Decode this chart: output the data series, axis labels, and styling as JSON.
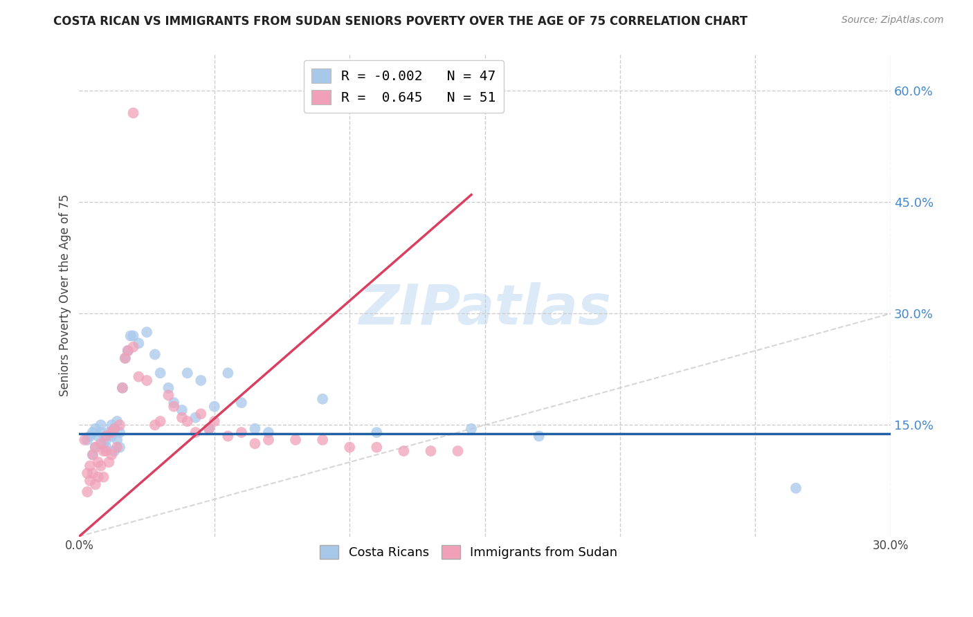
{
  "title": "COSTA RICAN VS IMMIGRANTS FROM SUDAN SENIORS POVERTY OVER THE AGE OF 75 CORRELATION CHART",
  "source": "Source: ZipAtlas.com",
  "ylabel": "Seniors Poverty Over the Age of 75",
  "xlim": [
    0.0,
    0.3
  ],
  "ylim": [
    0.0,
    0.65
  ],
  "xticks": [
    0.0,
    0.05,
    0.1,
    0.15,
    0.2,
    0.25,
    0.3
  ],
  "xticklabels": [
    "0.0%",
    "",
    "",
    "",
    "",
    "",
    "30.0%"
  ],
  "right_yticks": [
    0.15,
    0.3,
    0.45,
    0.6
  ],
  "right_yticklabels": [
    "15.0%",
    "30.0%",
    "45.0%",
    "60.0%"
  ],
  "grid_yticks": [
    0.15,
    0.3,
    0.45,
    0.6
  ],
  "grid_xticks": [
    0.05,
    0.1,
    0.15,
    0.2,
    0.25,
    0.3
  ],
  "blue_color": "#a8c8ea",
  "pink_color": "#f0a0b8",
  "blue_line_color": "#1f5fa6",
  "pink_line_color": "#d94060",
  "diag_line_color": "#cccccc",
  "legend_r_blue": "-0.002",
  "legend_n_blue": "47",
  "legend_r_pink": "0.645",
  "legend_n_pink": "51",
  "legend_label_blue": "Costa Ricans",
  "legend_label_pink": "Immigrants from Sudan",
  "watermark": "ZIPatlas",
  "blue_line_x": [
    0.0,
    0.3
  ],
  "blue_line_y": [
    0.138,
    0.138
  ],
  "pink_line_x": [
    0.0,
    0.145
  ],
  "pink_line_y": [
    0.0,
    0.46
  ],
  "diag_line_x": [
    0.0,
    0.3
  ],
  "diag_line_y": [
    0.0,
    0.3
  ],
  "blue_scatter_x": [
    0.003,
    0.004,
    0.005,
    0.005,
    0.006,
    0.006,
    0.007,
    0.008,
    0.008,
    0.009,
    0.01,
    0.01,
    0.011,
    0.012,
    0.012,
    0.013,
    0.013,
    0.014,
    0.014,
    0.015,
    0.015,
    0.016,
    0.017,
    0.018,
    0.019,
    0.02,
    0.022,
    0.025,
    0.028,
    0.03,
    0.033,
    0.035,
    0.038,
    0.04,
    0.043,
    0.045,
    0.048,
    0.05,
    0.055,
    0.06,
    0.065,
    0.07,
    0.09,
    0.11,
    0.145,
    0.17,
    0.265
  ],
  "blue_scatter_y": [
    0.13,
    0.135,
    0.11,
    0.14,
    0.12,
    0.145,
    0.135,
    0.14,
    0.15,
    0.125,
    0.12,
    0.13,
    0.14,
    0.15,
    0.135,
    0.115,
    0.145,
    0.13,
    0.155,
    0.14,
    0.12,
    0.2,
    0.24,
    0.25,
    0.27,
    0.27,
    0.26,
    0.275,
    0.245,
    0.22,
    0.2,
    0.18,
    0.17,
    0.22,
    0.16,
    0.21,
    0.145,
    0.175,
    0.22,
    0.18,
    0.145,
    0.14,
    0.185,
    0.14,
    0.145,
    0.135,
    0.065
  ],
  "pink_scatter_x": [
    0.002,
    0.003,
    0.003,
    0.004,
    0.004,
    0.005,
    0.005,
    0.006,
    0.006,
    0.007,
    0.007,
    0.008,
    0.008,
    0.009,
    0.009,
    0.01,
    0.01,
    0.011,
    0.012,
    0.012,
    0.013,
    0.014,
    0.015,
    0.016,
    0.017,
    0.018,
    0.02,
    0.022,
    0.025,
    0.028,
    0.03,
    0.033,
    0.035,
    0.038,
    0.04,
    0.043,
    0.045,
    0.048,
    0.05,
    0.055,
    0.06,
    0.065,
    0.07,
    0.08,
    0.09,
    0.1,
    0.11,
    0.12,
    0.13,
    0.14,
    0.02
  ],
  "pink_scatter_y": [
    0.13,
    0.085,
    0.06,
    0.095,
    0.075,
    0.11,
    0.085,
    0.12,
    0.07,
    0.1,
    0.08,
    0.125,
    0.095,
    0.115,
    0.08,
    0.135,
    0.115,
    0.1,
    0.14,
    0.11,
    0.145,
    0.12,
    0.15,
    0.2,
    0.24,
    0.25,
    0.255,
    0.215,
    0.21,
    0.15,
    0.155,
    0.19,
    0.175,
    0.16,
    0.155,
    0.14,
    0.165,
    0.145,
    0.155,
    0.135,
    0.14,
    0.125,
    0.13,
    0.13,
    0.13,
    0.12,
    0.12,
    0.115,
    0.115,
    0.115,
    0.57
  ]
}
